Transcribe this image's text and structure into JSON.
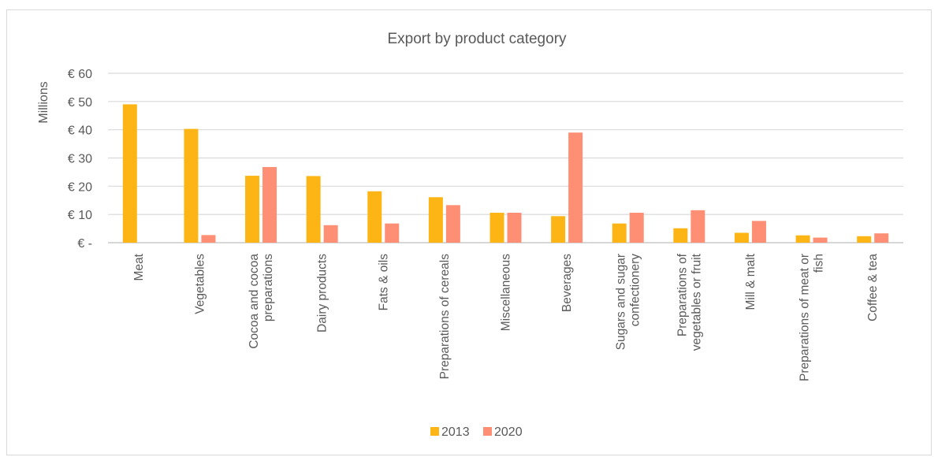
{
  "chart_data": {
    "type": "bar",
    "title": "Export by product category",
    "ylabel": "Millions",
    "ylim": [
      0,
      60
    ],
    "yticks": [
      0,
      10,
      20,
      30,
      40,
      50,
      60
    ],
    "ytick_labels": [
      "€ -",
      "€ 10",
      "€ 20",
      "€ 30",
      "€ 40",
      "€ 50",
      "€ 60"
    ],
    "grid": true,
    "legend_position": "bottom",
    "categories": [
      [
        "Meat"
      ],
      [
        "Vegetables"
      ],
      [
        "Cocoa and cocoa",
        "preparations"
      ],
      [
        "Dairy products"
      ],
      [
        "Fats & oils"
      ],
      [
        "Preparations of cereals"
      ],
      [
        "Miscellaneous"
      ],
      [
        "Beverages"
      ],
      [
        "Sugars and sugar",
        "confectionery"
      ],
      [
        "Preparations of",
        "vegetables or fruit"
      ],
      [
        "Mill & malt"
      ],
      [
        "Preparations of meat or",
        "fish"
      ],
      [
        "Coffee & tea"
      ]
    ],
    "series": [
      {
        "name": "2013",
        "color": "#FDB515",
        "values": [
          49,
          40.3,
          23.7,
          23.6,
          18.2,
          16.1,
          10.6,
          9.4,
          6.8,
          5.1,
          3.5,
          2.6,
          2.3
        ]
      },
      {
        "name": "2020",
        "color": "#FF8F74",
        "values": [
          0,
          2.7,
          26.8,
          6.2,
          6.8,
          13.3,
          10.6,
          39,
          10.6,
          11.5,
          7.7,
          1.8,
          3.3
        ]
      }
    ]
  }
}
